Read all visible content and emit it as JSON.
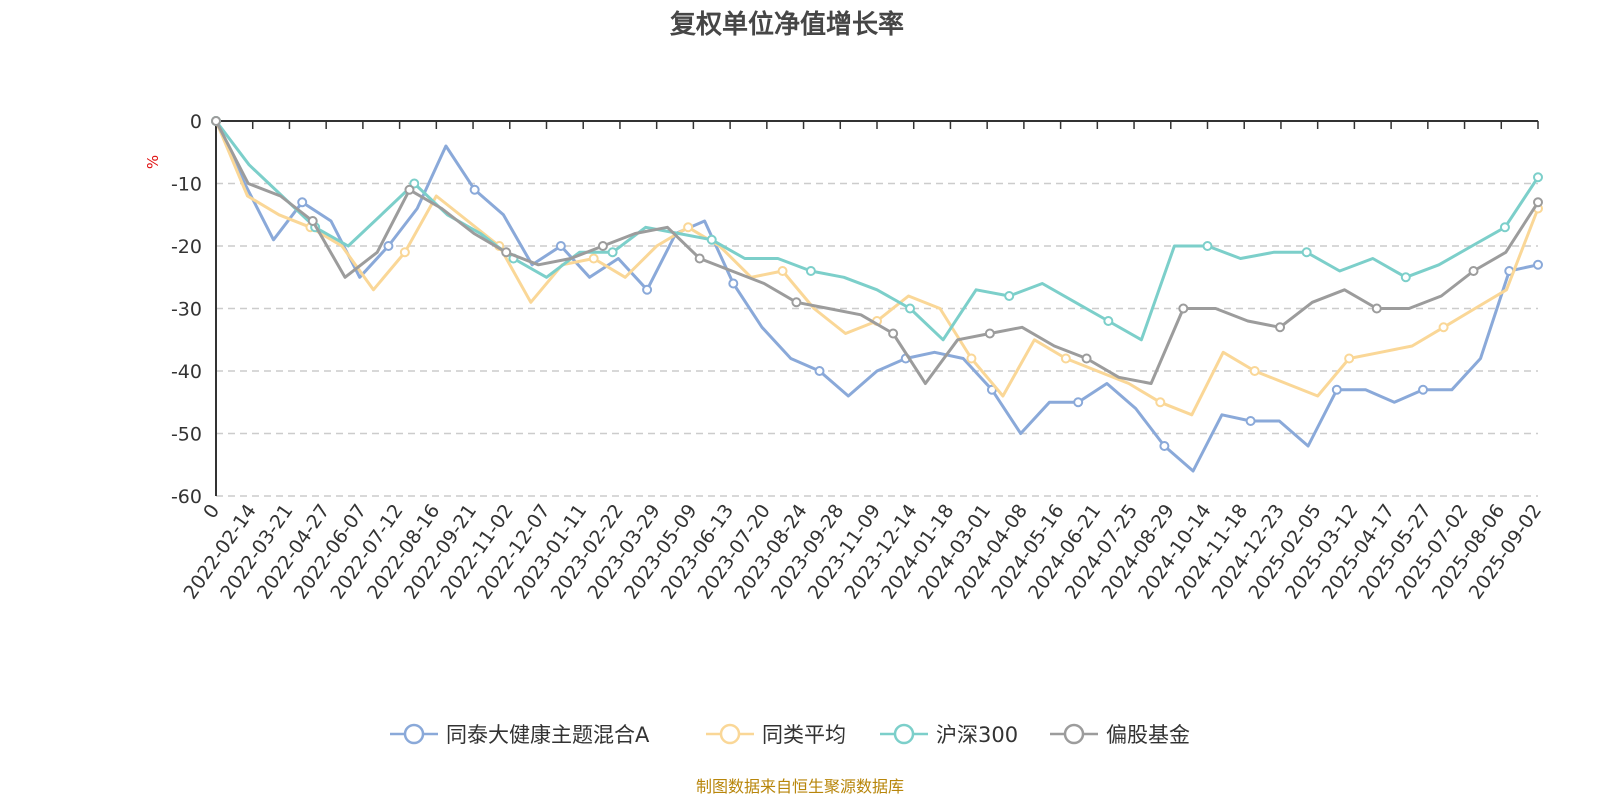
{
  "chart_data": {
    "type": "line",
    "title": "复权单位净值增长率",
    "ylabel": "%",
    "ylim": [
      -60,
      0
    ],
    "yticks": [
      0,
      -10,
      -20,
      -30,
      -40,
      -50,
      -60
    ],
    "grid": true,
    "legend_position": "bottom",
    "x_tick_labels": [
      "0",
      "2022-02-14",
      "2022-03-21",
      "2022-04-27",
      "2022-06-07",
      "2022-07-12",
      "2022-08-16",
      "2022-09-21",
      "2022-11-02",
      "2022-12-07",
      "2023-01-11",
      "2023-02-22",
      "2023-03-29",
      "2023-05-09",
      "2023-06-13",
      "2023-07-20",
      "2023-08-24",
      "2023-09-28",
      "2023-11-09",
      "2023-12-14",
      "2024-01-18",
      "2024-03-01",
      "2024-04-08",
      "2024-05-16",
      "2024-06-21",
      "2024-07-25",
      "2024-08-29",
      "2024-10-14",
      "2024-11-18",
      "2024-12-23",
      "2025-02-05",
      "2025-03-12",
      "2025-04-17",
      "2025-05-27",
      "2025-07-02",
      "2025-08-06",
      "2025-09-02"
    ],
    "series": [
      {
        "name": "同泰大健康主题混合A",
        "color": "#8aa9d9",
        "values": [
          0,
          -10,
          -19,
          -13,
          -16,
          -25,
          -20,
          -14,
          -4,
          -11,
          -15,
          -23,
          -20,
          -25,
          -22,
          -27,
          -18,
          -16,
          -26,
          -33,
          -38,
          -40,
          -44,
          -40,
          -38,
          -37,
          -38,
          -43,
          -50,
          -45,
          -45,
          -42,
          -46,
          -52,
          -56,
          -47,
          -48,
          -48,
          -52,
          -43,
          -43,
          -45,
          -43,
          -43,
          -38,
          -24,
          -23
        ]
      },
      {
        "name": "同类平均",
        "color": "#fad797",
        "values": [
          0,
          -12,
          -15,
          -17,
          -20,
          -27,
          -21,
          -12,
          -16,
          -20,
          -29,
          -23,
          -22,
          -25,
          -20,
          -17,
          -20,
          -25,
          -24,
          -30,
          -34,
          -32,
          -28,
          -30,
          -38,
          -44,
          -35,
          -38,
          -40,
          -42,
          -45,
          -47,
          -37,
          -40,
          -42,
          -44,
          -38,
          -37,
          -36,
          -33,
          -30,
          -27,
          -14
        ]
      },
      {
        "name": "沪深300",
        "color": "#7ccfca",
        "values": [
          0,
          -7,
          -12,
          -17,
          -20,
          -15,
          -10,
          -15,
          -18,
          -22,
          -25,
          -21,
          -21,
          -17,
          -18,
          -19,
          -22,
          -22,
          -24,
          -25,
          -27,
          -30,
          -35,
          -27,
          -28,
          -26,
          -29,
          -32,
          -35,
          -20,
          -20,
          -22,
          -21,
          -21,
          -24,
          -22,
          -25,
          -23,
          -20,
          -17,
          -9
        ]
      },
      {
        "name": "偏股基金",
        "color": "#9c9c9c",
        "values": [
          0,
          -10,
          -12,
          -16,
          -25,
          -21,
          -11,
          -14,
          -18,
          -21,
          -23,
          -22,
          -20,
          -18,
          -17,
          -22,
          -24,
          -26,
          -29,
          -30,
          -31,
          -34,
          -42,
          -35,
          -34,
          -33,
          -36,
          -38,
          -41,
          -42,
          -30,
          -30,
          -32,
          -33,
          -29,
          -27,
          -30,
          -30,
          -28,
          -24,
          -21,
          -13
        ]
      }
    ]
  },
  "source_text": "制图数据来自恒生聚源数据库"
}
